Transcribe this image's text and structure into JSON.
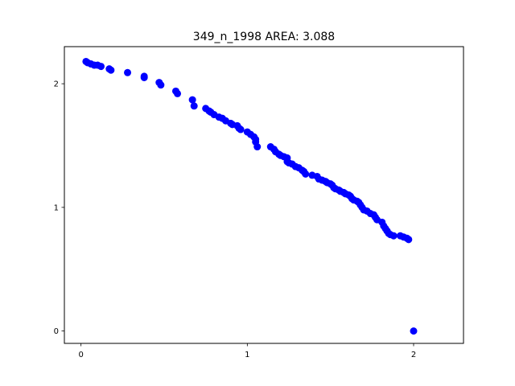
{
  "chart_data": {
    "type": "scatter",
    "title": "349_n_1998 AREA: 3.088",
    "xlabel": "",
    "ylabel": "",
    "xlim": [
      -0.1,
      2.3
    ],
    "ylim": [
      -0.1,
      2.3
    ],
    "xticks": [
      0,
      1,
      2
    ],
    "yticks": [
      0,
      1,
      2
    ],
    "grid": false,
    "marker_color": "#0000ff",
    "points": [
      [
        0.03,
        2.18
      ],
      [
        0.04,
        2.17
      ],
      [
        0.06,
        2.16
      ],
      [
        0.08,
        2.15
      ],
      [
        0.1,
        2.15
      ],
      [
        0.12,
        2.14
      ],
      [
        0.17,
        2.12
      ],
      [
        0.18,
        2.11
      ],
      [
        0.28,
        2.09
      ],
      [
        0.38,
        2.06
      ],
      [
        0.38,
        2.05
      ],
      [
        0.47,
        2.01
      ],
      [
        0.48,
        1.99
      ],
      [
        0.57,
        1.94
      ],
      [
        0.58,
        1.92
      ],
      [
        0.67,
        1.87
      ],
      [
        0.68,
        1.82
      ],
      [
        0.75,
        1.8
      ],
      [
        0.77,
        1.78
      ],
      [
        0.78,
        1.77
      ],
      [
        0.8,
        1.75
      ],
      [
        0.83,
        1.73
      ],
      [
        0.85,
        1.72
      ],
      [
        0.87,
        1.7
      ],
      [
        0.9,
        1.68
      ],
      [
        0.91,
        1.67
      ],
      [
        0.94,
        1.66
      ],
      [
        0.95,
        1.64
      ],
      [
        0.96,
        1.63
      ],
      [
        1.0,
        1.61
      ],
      [
        1.02,
        1.59
      ],
      [
        1.04,
        1.57
      ],
      [
        1.05,
        1.55
      ],
      [
        1.05,
        1.53
      ],
      [
        1.06,
        1.49
      ],
      [
        1.14,
        1.49
      ],
      [
        1.16,
        1.47
      ],
      [
        1.17,
        1.45
      ],
      [
        1.19,
        1.43
      ],
      [
        1.2,
        1.42
      ],
      [
        1.22,
        1.41
      ],
      [
        1.24,
        1.4
      ],
      [
        1.24,
        1.37
      ],
      [
        1.25,
        1.36
      ],
      [
        1.27,
        1.35
      ],
      [
        1.29,
        1.33
      ],
      [
        1.31,
        1.32
      ],
      [
        1.33,
        1.3
      ],
      [
        1.34,
        1.29
      ],
      [
        1.35,
        1.27
      ],
      [
        1.39,
        1.26
      ],
      [
        1.42,
        1.25
      ],
      [
        1.43,
        1.23
      ],
      [
        1.45,
        1.22
      ],
      [
        1.47,
        1.21
      ],
      [
        1.48,
        1.2
      ],
      [
        1.5,
        1.19
      ],
      [
        1.51,
        1.18
      ],
      [
        1.52,
        1.16
      ],
      [
        1.53,
        1.15
      ],
      [
        1.55,
        1.14
      ],
      [
        1.56,
        1.13
      ],
      [
        1.58,
        1.12
      ],
      [
        1.59,
        1.11
      ],
      [
        1.61,
        1.1
      ],
      [
        1.62,
        1.09
      ],
      [
        1.63,
        1.07
      ],
      [
        1.64,
        1.06
      ],
      [
        1.66,
        1.05
      ],
      [
        1.67,
        1.04
      ],
      [
        1.68,
        1.02
      ],
      [
        1.69,
        1.0
      ],
      [
        1.7,
        0.98
      ],
      [
        1.72,
        0.97
      ],
      [
        1.74,
        0.95
      ],
      [
        1.76,
        0.94
      ],
      [
        1.77,
        0.92
      ],
      [
        1.78,
        0.9
      ],
      [
        1.81,
        0.88
      ],
      [
        1.82,
        0.85
      ],
      [
        1.83,
        0.83
      ],
      [
        1.84,
        0.81
      ],
      [
        1.85,
        0.79
      ],
      [
        1.86,
        0.78
      ],
      [
        1.88,
        0.77
      ],
      [
        1.92,
        0.77
      ],
      [
        1.94,
        0.76
      ],
      [
        1.96,
        0.75
      ],
      [
        1.97,
        0.74
      ],
      [
        2.0,
        0.0
      ]
    ]
  }
}
